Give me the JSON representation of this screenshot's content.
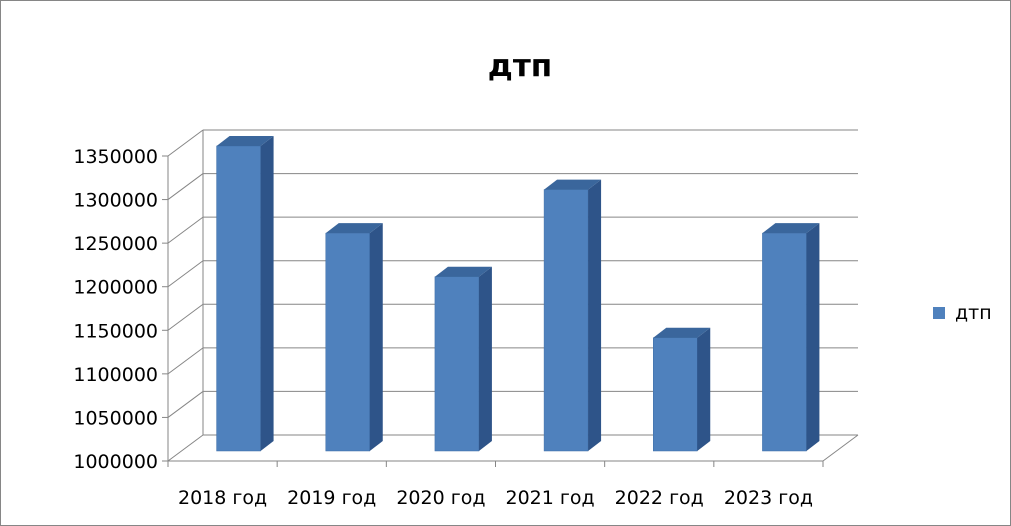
{
  "chart_data": {
    "type": "bar",
    "title": "дтп",
    "categories": [
      "2018 год",
      "2019 год",
      "2020 год",
      "2021 год",
      "2022 год",
      "2023 год"
    ],
    "series": [
      {
        "name": "дтп",
        "values": [
          1350000,
          1250000,
          1200000,
          1300000,
          1130000,
          1250000
        ],
        "color": "#4F81BD"
      }
    ],
    "ylim": [
      1000000,
      1350000
    ],
    "yticks": [
      1000000,
      1050000,
      1100000,
      1150000,
      1200000,
      1250000,
      1300000,
      1350000
    ],
    "ytick_labels": [
      "1000000",
      "1050000",
      "1100000",
      "1150000",
      "1200000",
      "1250000",
      "1300000",
      "1350000"
    ],
    "grid": true,
    "legend_position": "right",
    "three_d": true
  },
  "colors": {
    "bar_front": "#4F81BD",
    "bar_side": "#2E5489",
    "bar_top": "#3A669C",
    "grid": "#868686",
    "axis": "#868686",
    "frame": "#868686"
  }
}
